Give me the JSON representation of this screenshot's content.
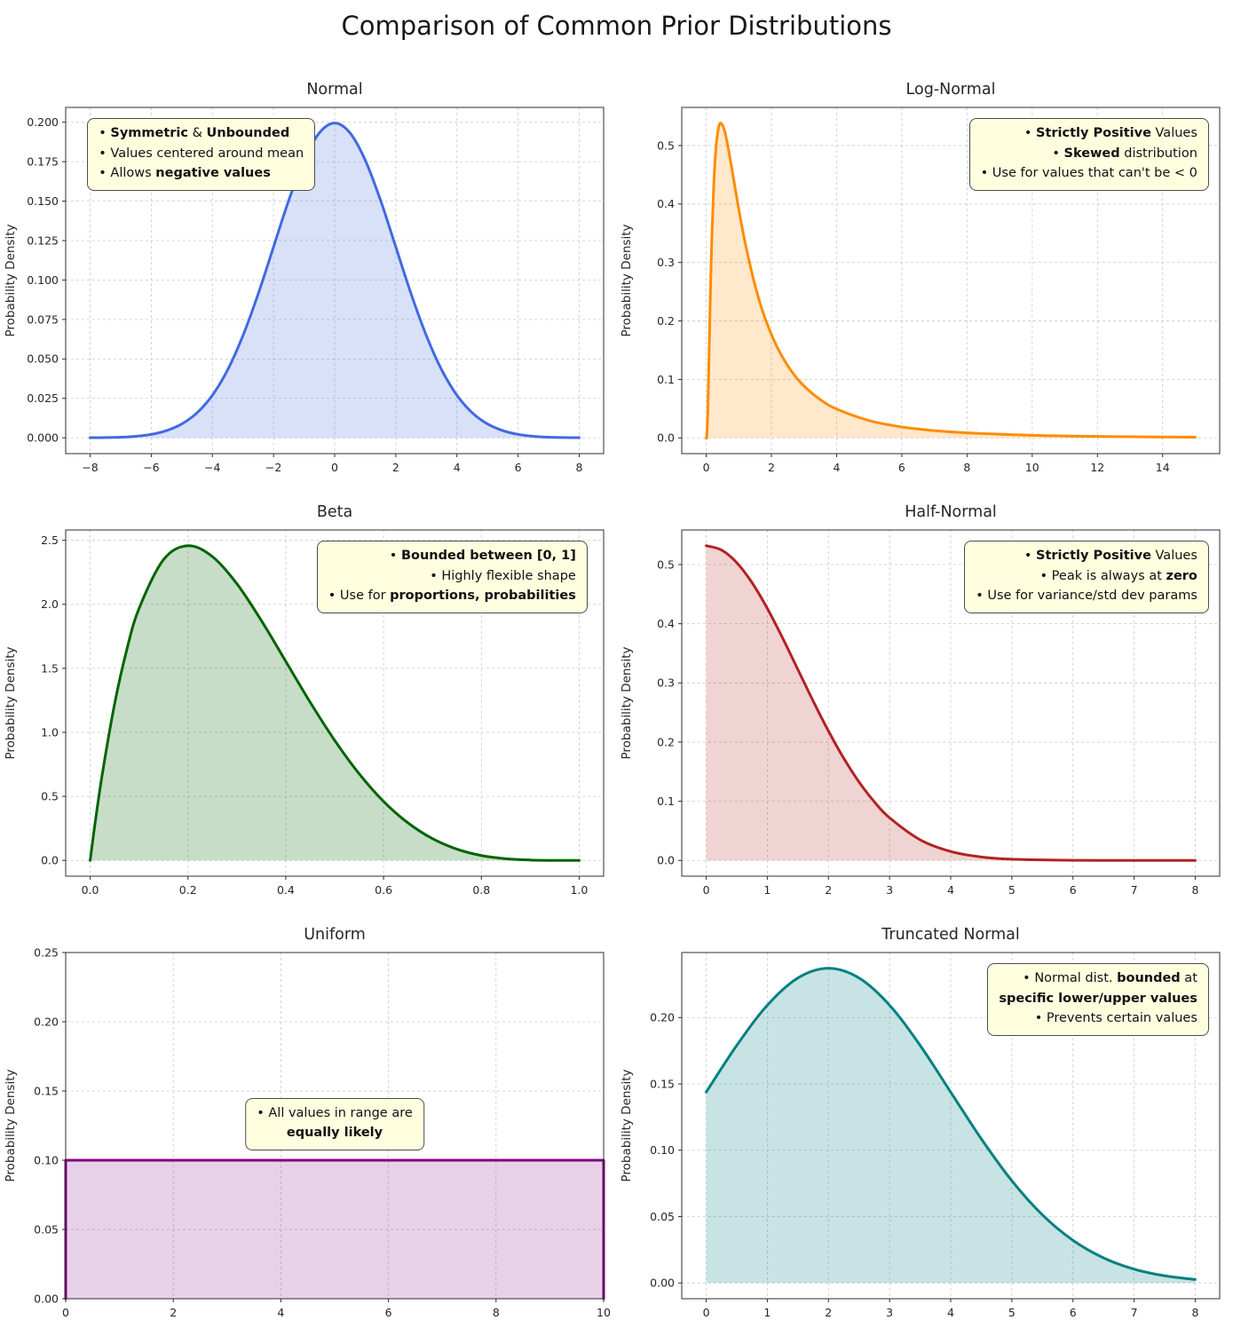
{
  "figure": {
    "title": "Comparison of Common Prior Distributions"
  },
  "style": {
    "annotation_bg": "#ffffe0",
    "annotation_border": "#4d4d4d",
    "grid_color": "#c9c9c9",
    "spine_color": "#2e2e2e",
    "text_color": "#262626"
  },
  "chart_data": [
    {
      "id": "normal",
      "type": "area",
      "title": "Normal",
      "ylabel": "Probability Density",
      "line_color": "#4169e1",
      "fill_color": "rgba(65,105,225,0.20)",
      "xlim": [
        -8.8,
        8.8
      ],
      "ylim": [
        -0.01,
        0.2094
      ],
      "xticks": [
        -8,
        -6,
        -4,
        -2,
        0,
        2,
        4,
        6,
        8
      ],
      "xtick_labels": [
        "−8",
        "−6",
        "−4",
        "−2",
        "0",
        "2",
        "4",
        "6",
        "8"
      ],
      "yticks": [
        0,
        0.025,
        0.05,
        0.075,
        0.1,
        0.125,
        0.15,
        0.175,
        0.2
      ],
      "ytick_labels": [
        "0.000",
        "0.025",
        "0.050",
        "0.075",
        "0.100",
        "0.125",
        "0.150",
        "0.175",
        "0.200"
      ],
      "smooth": true,
      "x": [
        -8,
        -7.5,
        -7,
        -6.5,
        -6,
        -5.5,
        -5,
        -4.5,
        -4,
        -3.5,
        -3,
        -2.5,
        -2,
        -1.5,
        -1,
        -0.5,
        0,
        0.5,
        1,
        1.5,
        2,
        2.5,
        3,
        3.5,
        4,
        4.5,
        5,
        5.5,
        6,
        6.5,
        7,
        7.5,
        8
      ],
      "y": [
        0.0001,
        0.0002,
        0.0004,
        0.001,
        0.0022,
        0.0046,
        0.0088,
        0.0159,
        0.027,
        0.0431,
        0.0648,
        0.0913,
        0.121,
        0.1506,
        0.176,
        0.1933,
        0.1995,
        0.1933,
        0.176,
        0.1506,
        0.121,
        0.0913,
        0.0648,
        0.0431,
        0.027,
        0.0159,
        0.0088,
        0.0046,
        0.0022,
        0.001,
        0.0004,
        0.0002,
        0.0001
      ],
      "annotation": {
        "anchor": "left",
        "align": "left",
        "x": 0.04,
        "y": 0.032,
        "lines": [
          [
            [
              "• ",
              0
            ],
            [
              "Symmetric",
              1
            ],
            [
              " & ",
              0
            ],
            [
              "Unbounded",
              1
            ]
          ],
          [
            [
              "• Values centered around mean",
              0
            ]
          ],
          [
            [
              "• Allows ",
              0
            ],
            [
              "negative values",
              1
            ]
          ]
        ]
      }
    },
    {
      "id": "log-normal",
      "type": "area",
      "title": "Log-Normal",
      "ylabel": "Probability Density",
      "line_color": "#ff8c00",
      "fill_color": "rgba(255,140,0,0.20)",
      "xlim": [
        -0.75,
        15.75
      ],
      "ylim": [
        -0.0269,
        0.5652
      ],
      "xticks": [
        0,
        2,
        4,
        6,
        8,
        10,
        12,
        14
      ],
      "xtick_labels": [
        "0",
        "2",
        "4",
        "6",
        "8",
        "10",
        "12",
        "14"
      ],
      "yticks": [
        0,
        0.1,
        0.2,
        0.3,
        0.4,
        0.5
      ],
      "ytick_labels": [
        "0.0",
        "0.1",
        "0.2",
        "0.3",
        "0.4",
        "0.5"
      ],
      "smooth": true,
      "x": [
        0,
        0.005,
        0.02,
        0.05,
        0.08,
        0.12,
        0.17,
        0.23,
        0.3,
        0.38,
        0.45,
        0.55,
        0.65,
        0.8,
        1.0,
        1.2,
        1.5,
        1.8,
        2.2,
        2.6,
        3.0,
        3.5,
        4.0,
        5.0,
        6.0,
        7.0,
        8.0,
        10.0,
        12.0,
        15.0
      ],
      "y": [
        0,
        0.0002,
        0.0042,
        0.0483,
        0.1215,
        0.2254,
        0.3363,
        0.4303,
        0.4962,
        0.5308,
        0.5383,
        0.5277,
        0.503,
        0.456,
        0.391,
        0.3324,
        0.2604,
        0.2055,
        0.1525,
        0.1153,
        0.0888,
        0.0655,
        0.0494,
        0.0296,
        0.0187,
        0.0124,
        0.0085,
        0.0044,
        0.0025,
        0.0012
      ],
      "annotation": {
        "anchor": "right",
        "align": "right",
        "x": 0.98,
        "y": 0.032,
        "lines": [
          [
            [
              "• ",
              0
            ],
            [
              "Strictly Positive",
              1
            ],
            [
              " Values",
              0
            ]
          ],
          [
            [
              "• ",
              0
            ],
            [
              "Skewed",
              1
            ],
            [
              " distribution",
              0
            ]
          ],
          [
            [
              "• Use for values that can't be < 0",
              0
            ]
          ]
        ]
      }
    },
    {
      "id": "beta",
      "type": "area",
      "title": "Beta",
      "ylabel": "Probability Density",
      "line_color": "#006400",
      "fill_color": "rgba(0,100,0,0.22)",
      "xlim": [
        -0.05,
        1.05
      ],
      "ylim": [
        -0.123,
        2.581
      ],
      "xticks": [
        0,
        0.2,
        0.4,
        0.6,
        0.8,
        1.0
      ],
      "xtick_labels": [
        "0.0",
        "0.2",
        "0.4",
        "0.6",
        "0.8",
        "1.0"
      ],
      "yticks": [
        0,
        0.5,
        1.0,
        1.5,
        2.0,
        2.5
      ],
      "ytick_labels": [
        "0.0",
        "0.5",
        "1.0",
        "1.5",
        "2.0",
        "2.5"
      ],
      "smooth": true,
      "x": [
        0,
        0.01,
        0.025,
        0.05,
        0.075,
        0.1,
        0.15,
        0.2,
        0.25,
        0.3,
        0.35,
        0.4,
        0.45,
        0.5,
        0.55,
        0.6,
        0.65,
        0.7,
        0.75,
        0.8,
        0.85,
        0.9,
        0.95,
        1.0
      ],
      "y": [
        0,
        0.288,
        0.678,
        1.222,
        1.647,
        1.968,
        2.349,
        2.458,
        2.373,
        2.161,
        1.874,
        1.555,
        1.235,
        0.938,
        0.677,
        0.461,
        0.293,
        0.17,
        0.088,
        0.038,
        0.013,
        0.003,
        0.0002,
        0
      ],
      "annotation": {
        "anchor": "right",
        "align": "right",
        "x": 0.97,
        "y": 0.032,
        "lines": [
          [
            [
              "• ",
              0
            ],
            [
              "Bounded between [0, 1]",
              1
            ]
          ],
          [
            [
              "• Highly flexible shape",
              0
            ]
          ],
          [
            [
              "• Use for ",
              0
            ],
            [
              "proportions, probabilities",
              1
            ]
          ]
        ]
      }
    },
    {
      "id": "half-normal",
      "type": "area",
      "title": "Half-Normal",
      "ylabel": "Probability Density",
      "line_color": "#b22222",
      "fill_color": "rgba(178,34,34,0.20)",
      "xlim": [
        -0.4,
        8.4
      ],
      "ylim": [
        -0.0266,
        0.5585
      ],
      "xticks": [
        0,
        1,
        2,
        3,
        4,
        5,
        6,
        7,
        8
      ],
      "xtick_labels": [
        "0",
        "1",
        "2",
        "3",
        "4",
        "5",
        "6",
        "7",
        "8"
      ],
      "yticks": [
        0,
        0.1,
        0.2,
        0.3,
        0.4,
        0.5
      ],
      "ytick_labels": [
        "0.0",
        "0.1",
        "0.2",
        "0.3",
        "0.4",
        "0.5"
      ],
      "smooth": true,
      "x": [
        0,
        0.25,
        0.5,
        0.75,
        1,
        1.25,
        1.5,
        1.75,
        2,
        2.25,
        2.5,
        2.75,
        3,
        3.5,
        4,
        4.5,
        5,
        6,
        7,
        8
      ],
      "y": [
        0.5319,
        0.5246,
        0.5032,
        0.4694,
        0.4259,
        0.3759,
        0.3226,
        0.2693,
        0.2187,
        0.1727,
        0.1326,
        0.0991,
        0.072,
        0.0349,
        0.0152,
        0.0059,
        0.0021,
        0.0002,
        0.0001,
        0
      ],
      "annotation": {
        "anchor": "right",
        "align": "right",
        "x": 0.98,
        "y": 0.032,
        "lines": [
          [
            [
              "• ",
              0
            ],
            [
              "Strictly Positive",
              1
            ],
            [
              " Values",
              0
            ]
          ],
          [
            [
              "• Peak is always at ",
              0
            ],
            [
              "zero",
              1
            ]
          ],
          [
            [
              "• Use for variance/std dev params",
              0
            ]
          ]
        ]
      }
    },
    {
      "id": "uniform",
      "type": "area",
      "title": "Uniform",
      "ylabel": "Probability Density",
      "line_color": "#800080",
      "fill_color": "rgba(128,0,128,0.18)",
      "xlim": [
        0,
        10
      ],
      "ylim": [
        0,
        0.25
      ],
      "xticks": [
        0,
        2,
        4,
        6,
        8,
        10
      ],
      "xtick_labels": [
        "0",
        "2",
        "4",
        "6",
        "8",
        "10"
      ],
      "yticks": [
        0,
        0.05,
        0.1,
        0.15,
        0.2,
        0.25
      ],
      "ytick_labels": [
        "0.00",
        "0.05",
        "0.10",
        "0.15",
        "0.20",
        "0.25"
      ],
      "smooth": false,
      "x": [
        0,
        0,
        10,
        10
      ],
      "y": [
        0,
        0.1,
        0.1,
        0
      ],
      "annotation": {
        "anchor": "center",
        "align": "center",
        "x": 0.5,
        "y": 0.42,
        "lines": [
          [
            [
              "• All values in range are",
              0
            ]
          ],
          [
            [
              "equally likely",
              1
            ]
          ]
        ]
      }
    },
    {
      "id": "truncated-normal",
      "type": "area",
      "title": "Truncated Normal",
      "ylabel": "Probability Density",
      "line_color": "#008080",
      "fill_color": "rgba(0,128,128,0.22)",
      "xlim": [
        -0.4,
        8.4
      ],
      "ylim": [
        -0.0119,
        0.249
      ],
      "xticks": [
        0,
        1,
        2,
        3,
        4,
        5,
        6,
        7,
        8
      ],
      "xtick_labels": [
        "0",
        "1",
        "2",
        "3",
        "4",
        "5",
        "6",
        "7",
        "8"
      ],
      "yticks": [
        0,
        0.05,
        0.1,
        0.15,
        0.2
      ],
      "ytick_labels": [
        "0.00",
        "0.05",
        "0.10",
        "0.15",
        "0.20"
      ],
      "smooth": true,
      "x": [
        0,
        0.5,
        1,
        1.5,
        2,
        2.5,
        3,
        3.5,
        4,
        4.5,
        5,
        5.5,
        6,
        6.5,
        7,
        7.5,
        8
      ],
      "y": [
        0.1438,
        0.179,
        0.2093,
        0.2298,
        0.2371,
        0.2298,
        0.2093,
        0.179,
        0.1438,
        0.1086,
        0.077,
        0.0513,
        0.0321,
        0.0189,
        0.0104,
        0.0054,
        0.0026
      ],
      "annotation": {
        "anchor": "right",
        "align": "right",
        "x": 0.98,
        "y": 0.032,
        "lines": [
          [
            [
              "• Normal dist. ",
              0
            ],
            [
              "bounded",
              1
            ],
            [
              " at",
              0
            ]
          ],
          [
            [
              "specific lower/upper values",
              1
            ]
          ],
          [
            [
              "• Prevents certain values",
              0
            ]
          ]
        ]
      }
    }
  ]
}
